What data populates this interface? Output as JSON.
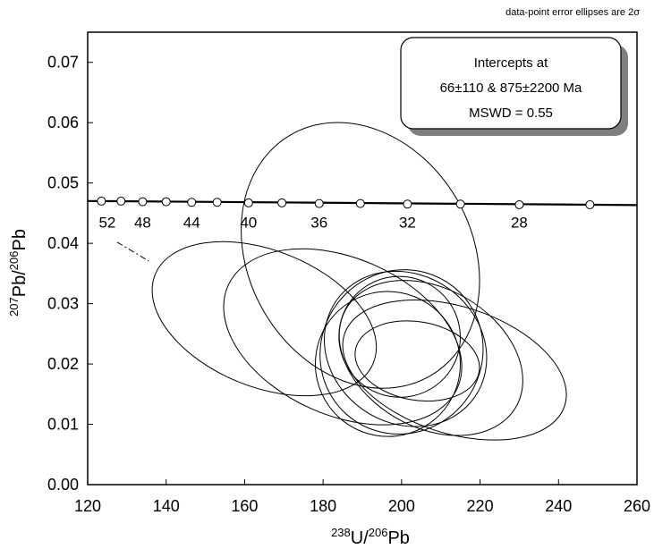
{
  "chart_data": {
    "type": "scatter",
    "subtype": "Tera-Wasserburg concordia with data-point error ellipses",
    "annotation": "data-point error ellipses are 2σ",
    "xlabel": {
      "sup1": "238",
      "base1": "U/",
      "sup2": "206",
      "base2": "Pb"
    },
    "ylabel": {
      "sup1": "207",
      "base1": "Pb/",
      "sup2": "206",
      "base2": "Pb"
    },
    "xlim": [
      120,
      260
    ],
    "ylim": [
      0,
      0.075
    ],
    "x_ticks": [
      120,
      140,
      160,
      180,
      200,
      220,
      240,
      260
    ],
    "x_tick_labels": [
      "120",
      "140",
      "160",
      "180",
      "200",
      "220",
      "240",
      "260"
    ],
    "y_ticks": [
      0,
      0.01,
      0.02,
      0.03,
      0.04,
      0.05,
      0.06,
      0.07
    ],
    "y_tick_labels": [
      "0.00",
      "0.01",
      "0.02",
      "0.03",
      "0.04",
      "0.05",
      "0.06",
      "0.07"
    ],
    "grid": false,
    "results_box": {
      "line1": "Intercepts at",
      "line2": "66±110 & 875±2200 Ma",
      "line3": "MSWD = 0.55"
    },
    "concordia": {
      "points": [
        {
          "x": 123.5,
          "y": 0.047
        },
        {
          "x": 128.5,
          "y": 0.047
        },
        {
          "x": 134.0,
          "y": 0.0469
        },
        {
          "x": 140.0,
          "y": 0.0469
        },
        {
          "x": 146.5,
          "y": 0.0468
        },
        {
          "x": 153.0,
          "y": 0.0468
        },
        {
          "x": 161.0,
          "y": 0.0467
        },
        {
          "x": 169.5,
          "y": 0.0467
        },
        {
          "x": 179.0,
          "y": 0.0466
        },
        {
          "x": 189.5,
          "y": 0.0466
        },
        {
          "x": 201.5,
          "y": 0.0465
        },
        {
          "x": 215.0,
          "y": 0.0465
        },
        {
          "x": 230.0,
          "y": 0.0464
        },
        {
          "x": 248.0,
          "y": 0.0464
        }
      ],
      "age_labels": [
        {
          "text": "52",
          "x": 125.0,
          "y": 0.0435
        },
        {
          "text": "48",
          "x": 134.0,
          "y": 0.0435
        },
        {
          "text": "44",
          "x": 146.5,
          "y": 0.0435
        },
        {
          "text": "40",
          "x": 161.0,
          "y": 0.0435
        },
        {
          "text": "36",
          "x": 179.0,
          "y": 0.0435
        },
        {
          "text": "32",
          "x": 201.5,
          "y": 0.0435
        },
        {
          "text": "28",
          "x": 230.0,
          "y": 0.0435
        }
      ]
    },
    "regression_line": {
      "x": [
        127.5,
        135.5
      ],
      "y": [
        0.0402,
        0.0371
      ]
    },
    "ellipses": [
      {
        "cx": 189.5,
        "cy": 0.038,
        "rx": 35.5,
        "ry": 0.0185,
        "angle": 60
      },
      {
        "cx": 165.0,
        "cy": 0.0275,
        "rx": 30.0,
        "ry": 0.0113,
        "angle": 22
      },
      {
        "cx": 185.0,
        "cy": 0.0245,
        "rx": 32.0,
        "ry": 0.013,
        "angle": 24
      },
      {
        "cx": 200.0,
        "cy": 0.022,
        "rx": 20.5,
        "ry": 0.0138,
        "angle": 38
      },
      {
        "cx": 201.0,
        "cy": 0.0225,
        "rx": 21.5,
        "ry": 0.0123,
        "angle": 35
      },
      {
        "cx": 207.5,
        "cy": 0.021,
        "rx": 25.0,
        "ry": 0.0115,
        "angle": 30
      },
      {
        "cx": 199.5,
        "cy": 0.0245,
        "rx": 15.5,
        "ry": 0.01,
        "angle": 32
      },
      {
        "cx": 196.5,
        "cy": 0.02,
        "rx": 18.5,
        "ry": 0.012,
        "angle": 55
      },
      {
        "cx": 213.5,
        "cy": 0.019,
        "rx": 29.5,
        "ry": 0.0105,
        "angle": 18
      },
      {
        "cx": 204.0,
        "cy": 0.0205,
        "rx": 16.0,
        "ry": 0.0065,
        "angle": 10
      }
    ]
  }
}
